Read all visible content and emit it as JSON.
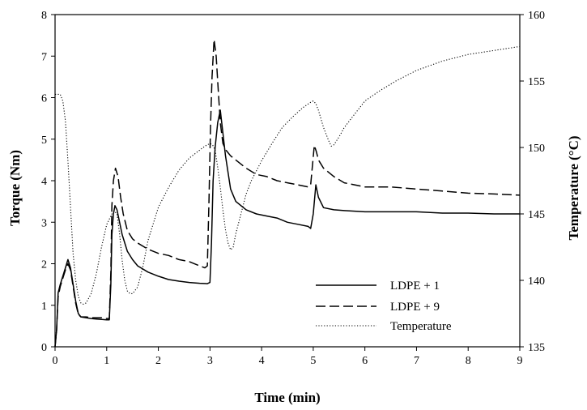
{
  "chart_data": {
    "type": "line",
    "xlabel": "Time (min)",
    "ylabel": "Torque (Nm)",
    "y2label": "Temperature (°C)",
    "xlim": [
      0,
      9
    ],
    "ylim": [
      0,
      8
    ],
    "y2lim": [
      135,
      160
    ],
    "xticks": [
      "0",
      "1",
      "2",
      "3",
      "4",
      "5",
      "6",
      "7",
      "8",
      "9"
    ],
    "yticks": [
      "0",
      "1",
      "2",
      "3",
      "4",
      "5",
      "6",
      "7",
      "8"
    ],
    "y2ticks": [
      "135",
      "140",
      "145",
      "150",
      "155",
      "160"
    ],
    "grid": false,
    "legend_position": "lower-right",
    "series": [
      {
        "name": "LDPE + 1",
        "axis": "left",
        "style": "solid",
        "x": [
          0,
          0.03,
          0.06,
          0.1,
          0.15,
          0.2,
          0.25,
          0.3,
          0.35,
          0.4,
          0.45,
          0.5,
          0.6,
          0.7,
          0.8,
          0.9,
          1.0,
          1.05,
          1.08,
          1.1,
          1.13,
          1.16,
          1.2,
          1.25,
          1.3,
          1.4,
          1.5,
          1.6,
          1.8,
          2.0,
          2.2,
          2.4,
          2.6,
          2.8,
          2.95,
          3.0,
          3.03,
          3.06,
          3.1,
          3.15,
          3.2,
          3.3,
          3.4,
          3.5,
          3.7,
          3.9,
          4.1,
          4.3,
          4.5,
          4.7,
          4.9,
          4.95,
          5.0,
          5.05,
          5.1,
          5.2,
          5.4,
          5.6,
          6.0,
          6.5,
          7.0,
          7.5,
          8.0,
          8.5,
          9.0
        ],
        "y": [
          0.0,
          0.4,
          1.3,
          1.5,
          1.7,
          1.9,
          2.1,
          1.9,
          1.5,
          1.1,
          0.8,
          0.72,
          0.7,
          0.68,
          0.67,
          0.66,
          0.65,
          0.65,
          1.5,
          2.7,
          3.2,
          3.4,
          3.3,
          3.0,
          2.7,
          2.3,
          2.1,
          1.95,
          1.8,
          1.7,
          1.62,
          1.58,
          1.55,
          1.53,
          1.52,
          1.55,
          2.5,
          4.0,
          4.8,
          5.4,
          5.7,
          4.6,
          3.8,
          3.5,
          3.3,
          3.2,
          3.15,
          3.1,
          3.0,
          2.95,
          2.9,
          2.85,
          3.2,
          3.9,
          3.6,
          3.35,
          3.3,
          3.28,
          3.25,
          3.25,
          3.25,
          3.22,
          3.22,
          3.2,
          3.2
        ]
      },
      {
        "name": "LDPE + 9",
        "axis": "left",
        "style": "dashed",
        "x": [
          0,
          0.03,
          0.06,
          0.1,
          0.15,
          0.2,
          0.25,
          0.3,
          0.35,
          0.4,
          0.45,
          0.5,
          0.6,
          0.7,
          0.8,
          0.9,
          1.0,
          1.05,
          1.08,
          1.1,
          1.13,
          1.17,
          1.22,
          1.27,
          1.32,
          1.4,
          1.5,
          1.6,
          1.8,
          2.0,
          2.2,
          2.4,
          2.6,
          2.8,
          2.9,
          2.95,
          2.98,
          3.01,
          3.04,
          3.08,
          3.12,
          3.16,
          3.2,
          3.25,
          3.3,
          3.4,
          3.5,
          3.7,
          3.9,
          4.1,
          4.3,
          4.5,
          4.7,
          4.9,
          4.95,
          4.98,
          5.02,
          5.06,
          5.1,
          5.2,
          5.4,
          5.6,
          6.0,
          6.5,
          7.0,
          7.5,
          8.0,
          8.5,
          9.0
        ],
        "y": [
          0.0,
          0.4,
          1.2,
          1.45,
          1.65,
          1.85,
          2.0,
          1.85,
          1.45,
          1.05,
          0.78,
          0.72,
          0.72,
          0.7,
          0.7,
          0.7,
          0.68,
          0.68,
          1.8,
          3.4,
          4.0,
          4.3,
          4.1,
          3.6,
          3.2,
          2.8,
          2.6,
          2.5,
          2.35,
          2.25,
          2.2,
          2.1,
          2.05,
          1.95,
          1.9,
          1.95,
          3.5,
          5.3,
          6.5,
          7.4,
          7.0,
          6.2,
          5.4,
          4.9,
          4.75,
          4.6,
          4.5,
          4.3,
          4.15,
          4.1,
          4.0,
          3.95,
          3.9,
          3.85,
          3.9,
          4.3,
          4.85,
          4.7,
          4.5,
          4.3,
          4.1,
          3.95,
          3.85,
          3.85,
          3.8,
          3.75,
          3.7,
          3.68,
          3.65
        ]
      },
      {
        "name": "Temperature",
        "axis": "right",
        "style": "dotted",
        "x": [
          0,
          0.1,
          0.15,
          0.2,
          0.25,
          0.3,
          0.35,
          0.4,
          0.45,
          0.5,
          0.55,
          0.6,
          0.7,
          0.8,
          0.9,
          1.0,
          1.1,
          1.15,
          1.2,
          1.25,
          1.3,
          1.35,
          1.4,
          1.45,
          1.5,
          1.6,
          1.7,
          1.8,
          2.0,
          2.2,
          2.4,
          2.6,
          2.8,
          2.9,
          3.0,
          3.05,
          3.1,
          3.15,
          3.2,
          3.25,
          3.3,
          3.35,
          3.4,
          3.45,
          3.5,
          3.6,
          3.7,
          3.8,
          4.0,
          4.2,
          4.4,
          4.6,
          4.8,
          4.95,
          5.0,
          5.05,
          5.1,
          5.2,
          5.3,
          5.35,
          5.4,
          5.5,
          5.6,
          5.8,
          6.0,
          6.3,
          6.6,
          7.0,
          7.5,
          8.0,
          8.5,
          9.0
        ],
        "y": [
          154.0,
          154.0,
          153.5,
          152.0,
          149.0,
          145.5,
          142.0,
          140.0,
          138.8,
          138.3,
          138.2,
          138.3,
          139.0,
          140.5,
          142.5,
          144.2,
          145.0,
          145.2,
          145.0,
          143.5,
          141.5,
          140.0,
          139.2,
          139.0,
          139.0,
          139.5,
          141.0,
          143.0,
          145.5,
          147.0,
          148.3,
          149.2,
          149.8,
          150.1,
          150.3,
          150.2,
          149.8,
          148.5,
          147.0,
          145.3,
          143.8,
          142.8,
          142.3,
          142.5,
          143.5,
          145.0,
          146.5,
          147.5,
          149.0,
          150.3,
          151.5,
          152.3,
          153.0,
          153.4,
          153.5,
          153.3,
          152.8,
          151.5,
          150.5,
          150.1,
          150.2,
          150.8,
          151.5,
          152.5,
          153.5,
          154.3,
          155.0,
          155.8,
          156.5,
          157.0,
          157.3,
          157.6
        ]
      }
    ]
  }
}
